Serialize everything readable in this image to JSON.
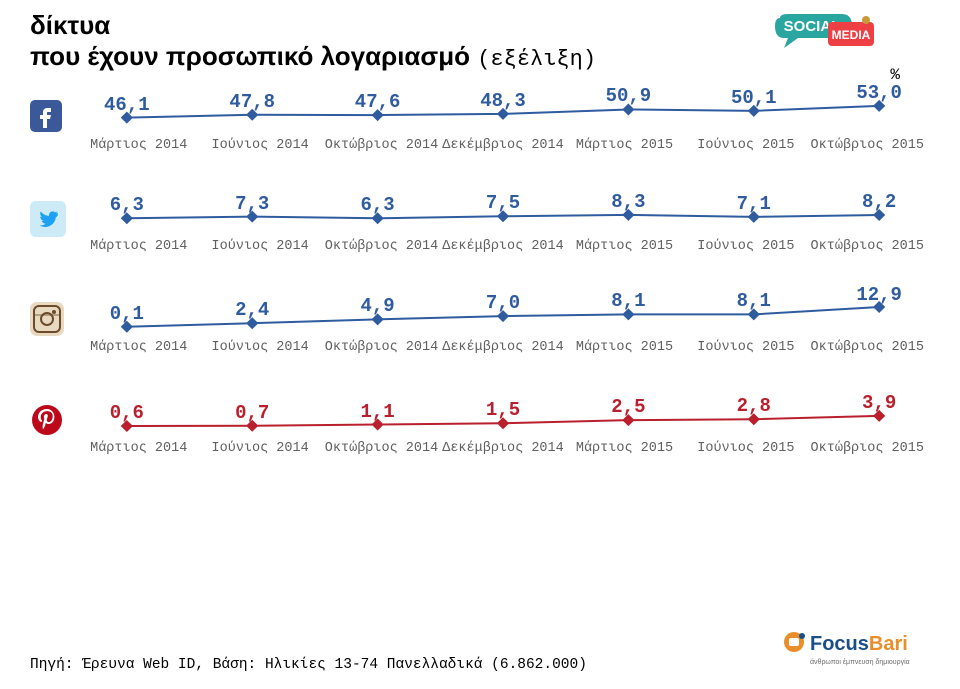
{
  "title_line1": "δίκτυα",
  "title_line2": "που έχουν προσωπικό λογαριασμό",
  "title_suffix": "(εξέλιξη)",
  "title_fontsize": 26,
  "percent_symbol": "%",
  "x_labels": [
    "Μάρτιος 2014",
    "Ιούνιος 2014",
    "Οκτώβριος 2014",
    "Δεκέμβριος 2014",
    "Μάρτιος 2015",
    "Ιούνιος 2015",
    "Οκτώβριος 2015"
  ],
  "value_label_fontsize": 19,
  "axis_label_fontsize": 13.5,
  "marker_style": "diamond",
  "marker_size": 6,
  "line_width": 2,
  "charts": [
    {
      "platform": "facebook",
      "values": [
        "46,1",
        "47,8",
        "47,6",
        "48,3",
        "50,9",
        "50,1",
        "53,0"
      ],
      "numeric": [
        46.1,
        47.8,
        47.6,
        48.3,
        50.9,
        50.1,
        53.0
      ],
      "color": "#2f5b9f",
      "ylim": [
        40,
        60
      ]
    },
    {
      "platform": "twitter",
      "values": [
        "6,3",
        "7,3",
        "6,3",
        "7,5",
        "8,3",
        "7,1",
        "8,2"
      ],
      "numeric": [
        6.3,
        7.3,
        6.3,
        7.5,
        8.3,
        7.1,
        8.2
      ],
      "color": "#2f5b9f",
      "ylim": [
        0,
        20
      ]
    },
    {
      "platform": "instagram",
      "values": [
        "0,1",
        "2,4",
        "4,9",
        "7,0",
        "8,1",
        "8,1",
        "12,9"
      ],
      "numeric": [
        0.1,
        2.4,
        4.9,
        7.0,
        8.1,
        8.1,
        12.9
      ],
      "color": "#2f5b9f",
      "ylim": [
        -2,
        20
      ]
    },
    {
      "platform": "pinterest",
      "values": [
        "0,6",
        "0,7",
        "1,1",
        "1,5",
        "2,5",
        "2,8",
        "3,9"
      ],
      "numeric": [
        0.6,
        0.7,
        1.1,
        1.5,
        2.5,
        2.8,
        3.9
      ],
      "color": "#b91f2d",
      "ylim": [
        -1,
        10
      ]
    }
  ],
  "icons": {
    "facebook": {
      "bg": "#3b5998",
      "fg": "#ffffff"
    },
    "twitter": {
      "bg": "#cdeaf7",
      "fg": "#1da1f2"
    },
    "instagram": {
      "bg": "#e8d9c1",
      "fg": "#6b4b2b"
    },
    "pinterest": {
      "bg": "#ffffff",
      "fg": "#bd081c"
    }
  },
  "source_text": "Πηγή: Έρευνα Web ID, Βάση: Ηλικίες 13-74 Πανελλαδικά (6.862.000)",
  "footer_logo": {
    "brand_prefix": "Focus",
    "brand_suffix": "Bari",
    "tagline": "άνθρωποι   έμπνευση   δημιουργία",
    "color_prefix": "#1b4f8a",
    "color_suffix": "#e98e2a"
  },
  "social_badge": {
    "bubble_color": "#2aa6a0",
    "text": "SOCIAL",
    "media_bg": "#ee3f44",
    "media_text": "MEDIA"
  }
}
